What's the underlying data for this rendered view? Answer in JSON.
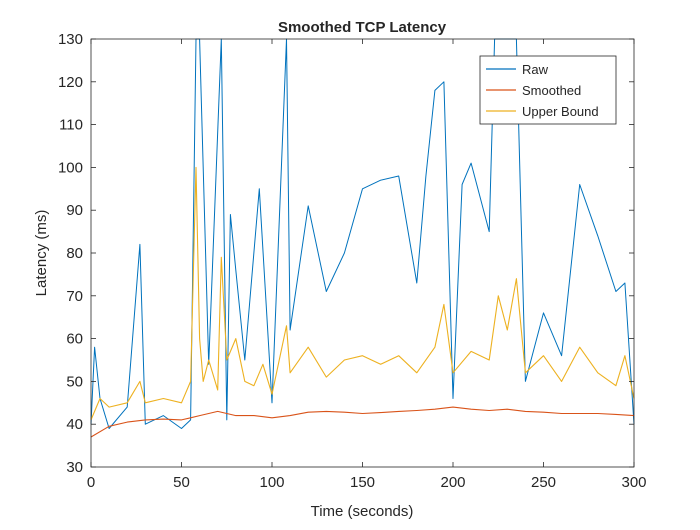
{
  "chart_data": {
    "type": "line",
    "title": "Smoothed TCP Latency",
    "xlabel": "Time (seconds)",
    "ylabel": "Latency (ms)",
    "xlim": [
      0,
      300
    ],
    "ylim": [
      30,
      130
    ],
    "x_ticks": [
      0,
      50,
      100,
      150,
      200,
      250,
      300
    ],
    "y_ticks": [
      30,
      40,
      50,
      60,
      70,
      80,
      90,
      100,
      110,
      120,
      130
    ],
    "x_tick_labels": [
      "0",
      "50",
      "100",
      "150",
      "200",
      "250",
      "300"
    ],
    "y_tick_labels": [
      "30",
      "40",
      "50",
      "60",
      "70",
      "80",
      "90",
      "100",
      "110",
      "120",
      "130"
    ],
    "grid": false,
    "legend_location": "top-right",
    "series": [
      {
        "name": "Raw",
        "color": "#0072BD",
        "x": [
          0,
          2,
          5,
          10,
          20,
          27,
          30,
          40,
          50,
          55,
          58,
          60,
          65,
          72,
          75,
          77,
          80,
          85,
          93,
          100,
          108,
          110,
          120,
          130,
          140,
          150,
          160,
          170,
          180,
          185,
          190,
          195,
          200,
          205,
          210,
          220,
          223,
          225,
          230,
          235,
          240,
          250,
          260,
          270,
          280,
          290,
          295,
          300
        ],
        "values": [
          40,
          58,
          46,
          39,
          44,
          82,
          40,
          42,
          39,
          41,
          130,
          130,
          54,
          130,
          41,
          89,
          76,
          55,
          95,
          45,
          130,
          62,
          91,
          71,
          80,
          95,
          97,
          98,
          73,
          98,
          118,
          120,
          46,
          96,
          101,
          85,
          130,
          130,
          130,
          130,
          50,
          66,
          56,
          96,
          84,
          71,
          73,
          40
        ]
      },
      {
        "name": "Smoothed",
        "color": "#D95319",
        "x": [
          0,
          10,
          20,
          30,
          40,
          50,
          55,
          60,
          65,
          70,
          75,
          80,
          90,
          100,
          110,
          120,
          130,
          140,
          150,
          160,
          170,
          180,
          190,
          200,
          210,
          220,
          230,
          240,
          250,
          260,
          270,
          280,
          290,
          300
        ],
        "values": [
          37,
          39.5,
          40.5,
          41,
          41.2,
          41,
          41.5,
          42,
          42.5,
          43,
          42.5,
          42,
          42,
          41.5,
          42,
          42.8,
          43,
          42.8,
          42.5,
          42.7,
          43,
          43.2,
          43.5,
          44,
          43.5,
          43.2,
          43.5,
          43,
          42.8,
          42.5,
          42.5,
          42.5,
          42.3,
          42
        ]
      },
      {
        "name": "Upper Bound",
        "color": "#EDB120",
        "x": [
          0,
          5,
          10,
          20,
          27,
          30,
          40,
          50,
          55,
          58,
          60,
          62,
          65,
          70,
          72,
          75,
          80,
          85,
          90,
          95,
          100,
          108,
          110,
          120,
          130,
          140,
          150,
          160,
          170,
          180,
          190,
          195,
          200,
          210,
          220,
          225,
          230,
          235,
          240,
          250,
          260,
          270,
          280,
          290,
          295,
          300
        ],
        "values": [
          41,
          46,
          44,
          45,
          50,
          45,
          46,
          45,
          50,
          100,
          60,
          50,
          55,
          48,
          79,
          55,
          60,
          50,
          49,
          54,
          47,
          63,
          52,
          58,
          51,
          55,
          56,
          54,
          56,
          52,
          58,
          68,
          52,
          57,
          55,
          70,
          62,
          74,
          52,
          56,
          50,
          58,
          52,
          49,
          56,
          46
        ]
      }
    ]
  }
}
